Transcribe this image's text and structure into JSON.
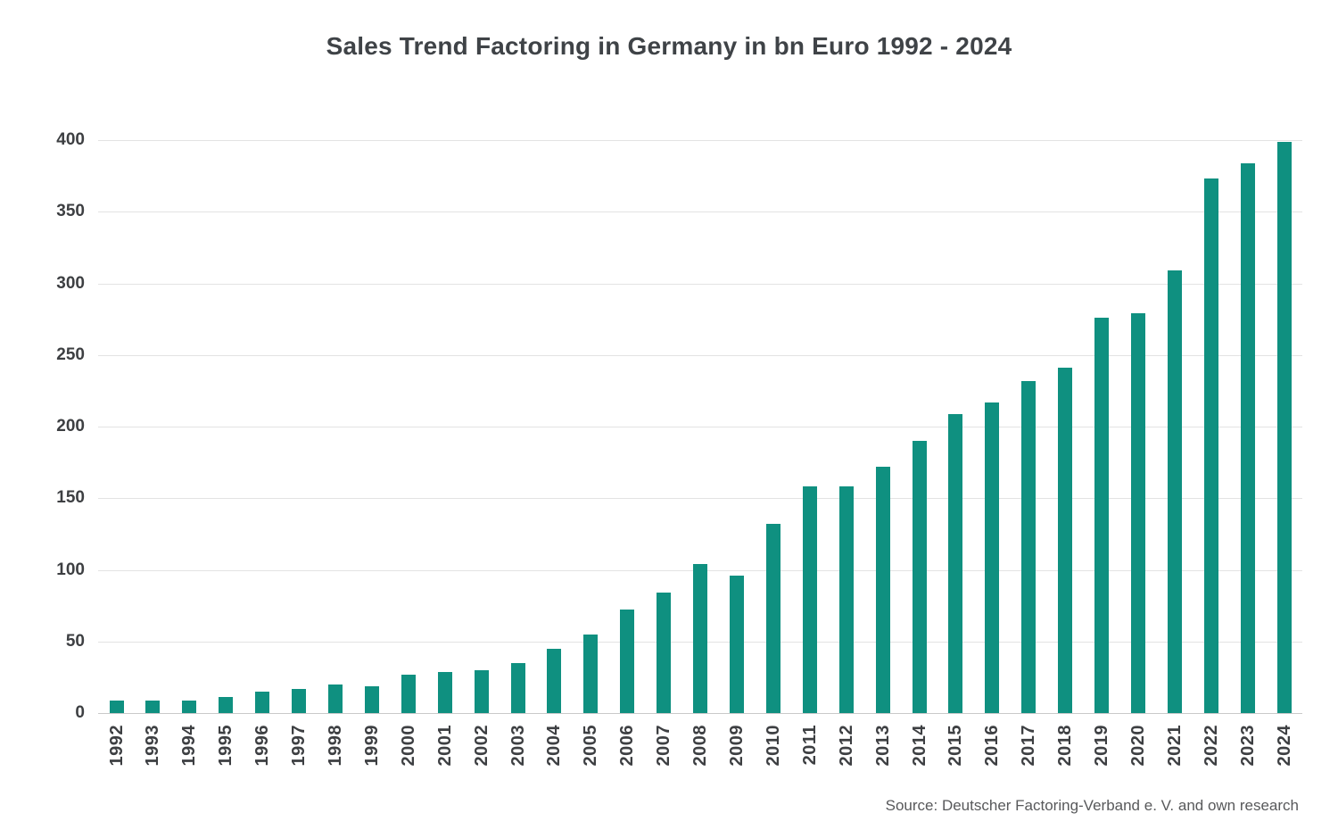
{
  "title": "Sales Trend Factoring in Germany in bn Euro 1992 - 2024",
  "source": "Source: Deutscher Factoring-Verband e. V. and own research",
  "colors": {
    "bar": "#0F9080",
    "grid": "#E3E3E3",
    "baseline": "#C9C9C9",
    "title_text": "#3F4347",
    "axis_text": "#3D3F42",
    "source_text": "#58595B",
    "background": "#FFFFFF"
  },
  "chart_data": {
    "type": "bar",
    "title": "Sales Trend Factoring in Germany in bn Euro 1992 - 2024",
    "xlabel": "",
    "ylabel": "",
    "categories": [
      "1992",
      "1993",
      "1994",
      "1995",
      "1996",
      "1997",
      "1998",
      "1999",
      "2000",
      "2001",
      "2002",
      "2003",
      "2004",
      "2005",
      "2006",
      "2007",
      "2008",
      "2009",
      "2010",
      "2011",
      "2012",
      "2013",
      "2014",
      "2015",
      "2016",
      "2017",
      "2018",
      "2019",
      "2020",
      "2021",
      "2022",
      "2023",
      "2024"
    ],
    "values": [
      9,
      9,
      9,
      11,
      15,
      17,
      20,
      19,
      27,
      29,
      30,
      35,
      45,
      55,
      72,
      84,
      104,
      96,
      132,
      158,
      158,
      172,
      190,
      209,
      217,
      232,
      241,
      276,
      279,
      309,
      373,
      384,
      399
    ],
    "ylim": [
      0,
      400
    ],
    "yticks": [
      0,
      50,
      100,
      150,
      200,
      250,
      300,
      350,
      400
    ],
    "grid": "horizontal-only",
    "legend": "none",
    "annotation": "Source: Deutscher Factoring-Verband e. V. and own research"
  }
}
